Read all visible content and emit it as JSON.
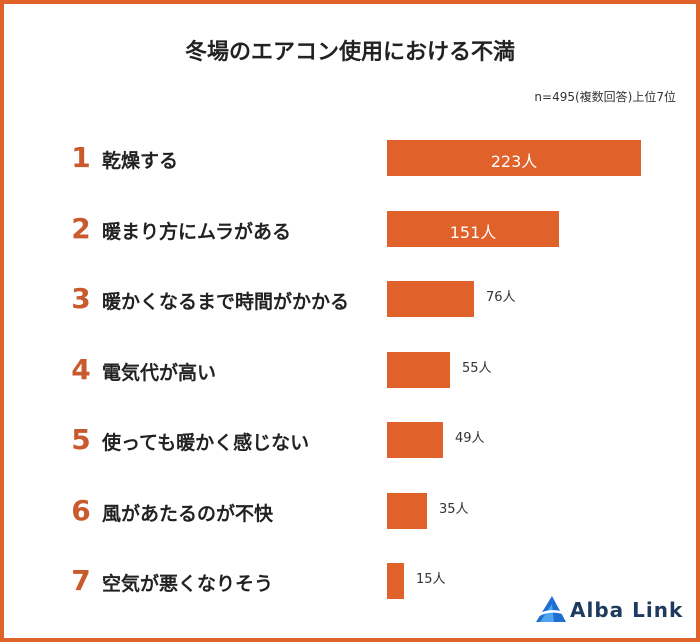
{
  "chart_data": {
    "type": "bar",
    "orientation": "horizontal",
    "title": "冬場のエアコン使用における不満",
    "subtitle": "n=495(複数回答)上位7位",
    "unit": "人",
    "categories": [
      "乾燥する",
      "暖まり方にムラがある",
      "暖かくなるまで時間がかかる",
      "電気代が高い",
      "使っても暖かく感じない",
      "風があたるのが不快",
      "空気が悪くなりそう"
    ],
    "ranks": [
      "1",
      "2",
      "3",
      "4",
      "5",
      "6",
      "7"
    ],
    "values": [
      223,
      151,
      76,
      55,
      49,
      35,
      15
    ],
    "value_labels": [
      "223人",
      "151人",
      "76人",
      "55人",
      "49人",
      "35人",
      "15人"
    ],
    "xlim": [
      0,
      223
    ],
    "grid": false
  },
  "colors": {
    "bar": "#e0612a",
    "rank": "#c95a2e",
    "frame": "#e0612a",
    "logo_blue": "#1e6fd0"
  },
  "branding": {
    "logo_text": "Alba Link",
    "logo_icon": "alba-link-mountain-icon"
  }
}
